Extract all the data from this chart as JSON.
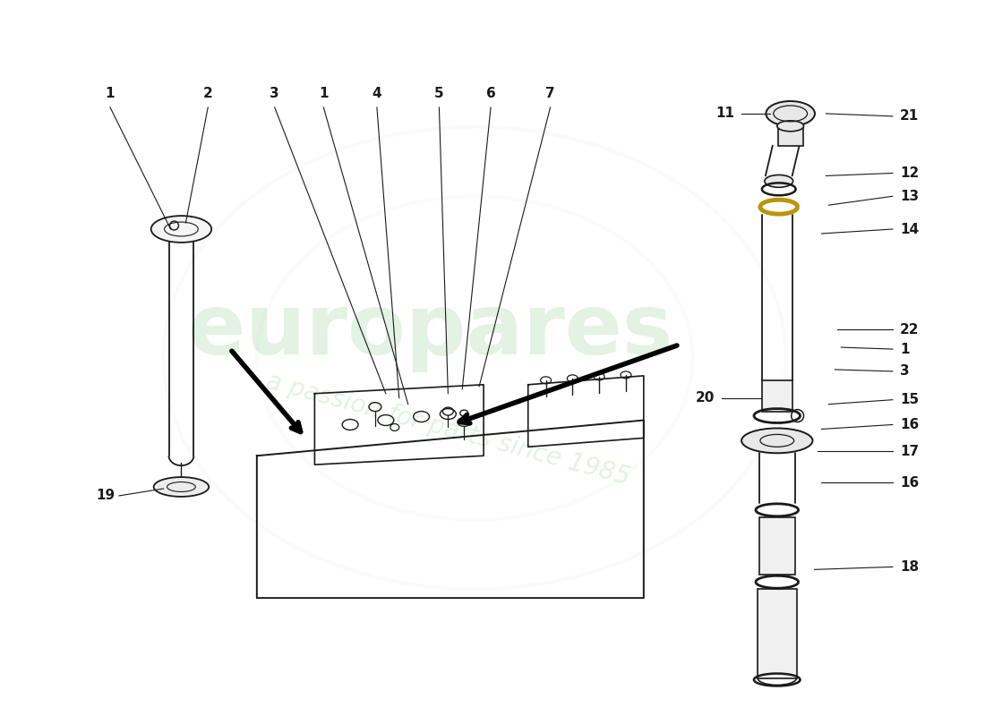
{
  "background_color": "#ffffff",
  "line_color": "#1a1a1a",
  "wm_green": "#c8e6c8",
  "figure_width": 11.0,
  "figure_height": 8.0,
  "dpi": 100
}
